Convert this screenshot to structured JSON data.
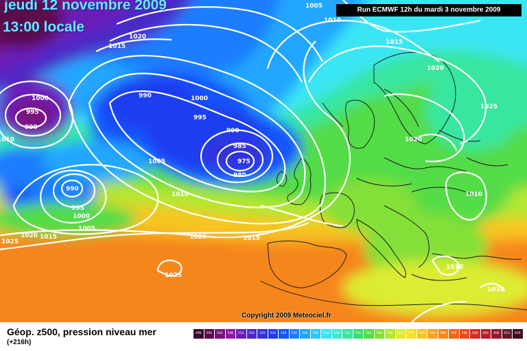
{
  "header": {
    "date": "jeudi 12 novembre 2009",
    "time": "13:00 locale",
    "run": "Run ECMWF 12h du mardi 3 novembre 2009"
  },
  "footer": {
    "copyright": "Copyright 2009 Meteociel.fr",
    "legend_title": "Géop. z500, pression niveau mer",
    "legend_subtitle": "(+216h)"
  },
  "legend": {
    "labels": [
      "496",
      "500",
      "504",
      "508",
      "512",
      "516",
      "520",
      "524",
      "528",
      "532",
      "536",
      "540",
      "544",
      "548",
      "552",
      "556",
      "560",
      "564",
      "568",
      "572",
      "576",
      "580",
      "584",
      "588",
      "592",
      "596",
      "600",
      "604",
      "608",
      "612",
      "616"
    ],
    "colors": [
      "#3d0a30",
      "#5a0a4a",
      "#7a137a",
      "#8e1aa3",
      "#6a1fb8",
      "#4a2ac8",
      "#3333dd",
      "#1f3cf0",
      "#1455ff",
      "#1e7dff",
      "#20a6ff",
      "#28c8ff",
      "#3ae6f4",
      "#3aeccc",
      "#38e6a0",
      "#3cdc6e",
      "#52dc46",
      "#84e038",
      "#b4e632",
      "#dcec32",
      "#f4e02a",
      "#f8c424",
      "#f8a41e",
      "#f5861c",
      "#f0661a",
      "#e84a1a",
      "#d82e22",
      "#b41f2a",
      "#8e1a2e",
      "#621a2a",
      "#3e0f1c"
    ]
  },
  "map": {
    "isobar_labels": [
      "1005",
      "1010",
      "1015",
      "1020",
      "1015",
      "1020",
      "1025",
      "1020",
      "1000",
      "995",
      "990",
      "990",
      "1000",
      "995",
      "990",
      "985",
      "975",
      "980",
      "1005",
      "1010",
      "990",
      "995",
      "1000",
      "1005",
      "1025",
      "1020",
      "1015",
      "1020",
      "1015",
      "1025",
      "1010",
      "1010",
      "1010",
      "1010"
    ]
  },
  "colors": {
    "title_text": "#66e8ff",
    "isobar": "#ffffff",
    "coastline": "#1a1a1a"
  }
}
